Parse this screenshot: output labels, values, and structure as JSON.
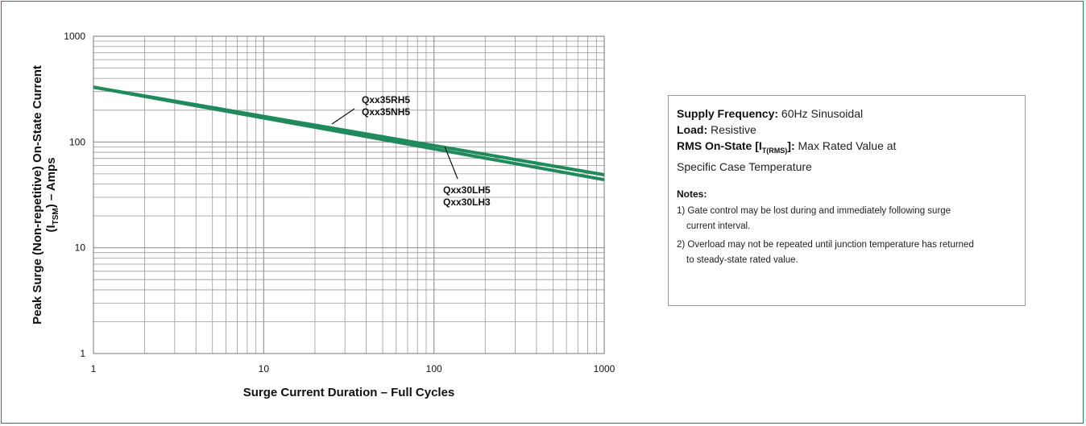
{
  "chart_data": {
    "type": "line",
    "xscale": "log",
    "yscale": "log",
    "xlim": [
      1,
      1000
    ],
    "ylim": [
      1,
      1000
    ],
    "grid": true,
    "xlabel": "Surge Current Duration – Full Cycles",
    "ylabel_line1": "Peak Surge (Non-repetitive) On-State Current",
    "ylabel_line2_prefix": "(I",
    "ylabel_line2_sub": "TSM",
    "ylabel_line2_suffix": ") – Amps",
    "x_ticks": [
      "1",
      "10",
      "100",
      "1000"
    ],
    "y_ticks": [
      "1",
      "10",
      "100",
      "1000"
    ],
    "series": [
      {
        "name": "Qxx35RH5 / Qxx35NH5",
        "labels": [
          "Qxx35RH5",
          "Qxx35NH5"
        ],
        "color": "#1f8a5c",
        "x": [
          1,
          1000
        ],
        "y": [
          330,
          49
        ]
      },
      {
        "name": "Qxx30LH5 / Qxx30LH3",
        "labels": [
          "Qxx30LH5",
          "Qxx30LH3"
        ],
        "color": "#1f8a5c",
        "x": [
          1,
          1000
        ],
        "y": [
          330,
          44
        ]
      }
    ]
  },
  "conditions": {
    "supply_frequency_label": "Supply Frequency:",
    "supply_frequency_value": "60Hz Sinusoidal",
    "load_label": "Load:",
    "load_value": "Resistive",
    "rms_label_prefix": "RMS On-State [I",
    "rms_label_sub": "T(RMS)",
    "rms_label_suffix": "]:",
    "rms_value_line1": "Max Rated Value at",
    "rms_value_line2": "Specific Case Temperature"
  },
  "notes": {
    "title": "Notes:",
    "items": [
      {
        "first": "1) Gate control may be lost during and immediately following surge",
        "cont": "current interval."
      },
      {
        "first": "2) Overload may not be repeated until junction temperature has returned",
        "cont": "to steady-state rated value."
      }
    ]
  },
  "colors": {
    "frame": "#1b8a5a",
    "series": "#1f8a5c",
    "grid": "#9a9a9a"
  }
}
